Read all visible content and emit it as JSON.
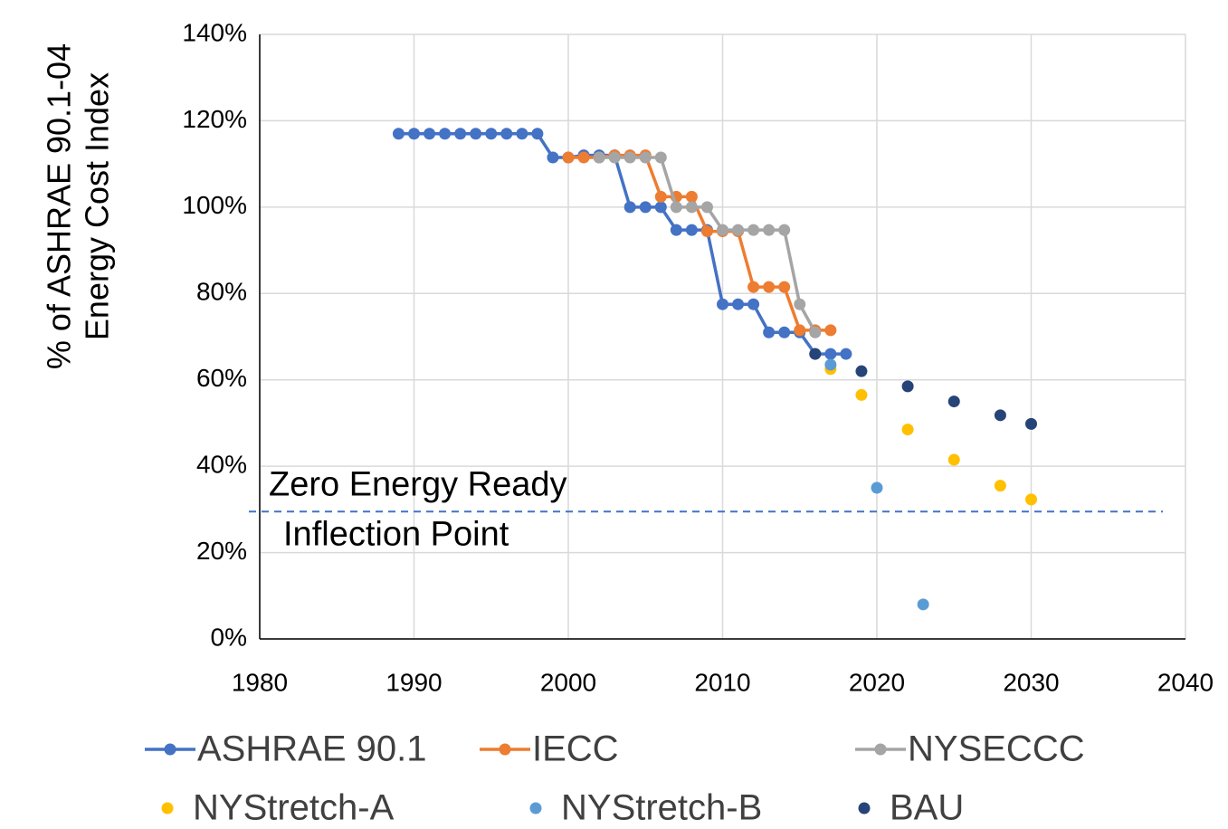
{
  "chart_data": {
    "type": "scatter",
    "y_label": [
      "% of ASHRAE 90.1-04",
      "Energy Cost Index"
    ],
    "annotations": [
      "Zero Energy Ready",
      "Inflection Point"
    ],
    "reference_line": {
      "value": 29.5,
      "color": "#4472c4",
      "style": "dashed"
    },
    "xlim": [
      1980,
      2040
    ],
    "xticks": [
      1980,
      1990,
      2000,
      2010,
      2020,
      2030,
      2040
    ],
    "ylim": [
      0,
      140
    ],
    "yticks": [
      {
        "value": 0,
        "label": "0%"
      },
      {
        "value": 20,
        "label": "20%"
      },
      {
        "value": 40,
        "label": "40%"
      },
      {
        "value": 60,
        "label": "60%"
      },
      {
        "value": 80,
        "label": "80%"
      },
      {
        "value": 100,
        "label": "100%"
      },
      {
        "value": 120,
        "label": "120%"
      },
      {
        "value": 140,
        "label": "140%"
      }
    ],
    "grid": true,
    "legend": "bottom",
    "series": [
      {
        "name": "ASHRAE 90.1",
        "color": "#4472c4",
        "style": "line",
        "x": [
          1989,
          1990,
          1991,
          1992,
          1993,
          1994,
          1995,
          1996,
          1997,
          1998,
          1999,
          2000,
          2001,
          2002,
          2003,
          2004,
          2005,
          2006,
          2007,
          2008,
          2009,
          2010,
          2011,
          2012,
          2013,
          2014,
          2015,
          2016,
          2017,
          2018
        ],
        "values": [
          117,
          117,
          117,
          117,
          117,
          117,
          117,
          117,
          117,
          117,
          111.5,
          111.5,
          112,
          112,
          112,
          100,
          100,
          100,
          94.7,
          94.7,
          94.7,
          77.5,
          77.5,
          77.5,
          71,
          71,
          71,
          66,
          66,
          66
        ]
      },
      {
        "name": "IECC",
        "color": "#ed7d31",
        "style": "line",
        "x": [
          2000,
          2001,
          2002,
          2003,
          2004,
          2005,
          2006,
          2007,
          2008,
          2009,
          2010,
          2011,
          2012,
          2013,
          2014,
          2015,
          2016,
          2017
        ],
        "values": [
          111.5,
          111.5,
          111.5,
          112,
          112,
          112,
          102.4,
          102.4,
          102.4,
          94.4,
          94.4,
          94.4,
          81.5,
          81.5,
          81.5,
          71.5,
          71.5,
          71.5
        ]
      },
      {
        "name": "NYSECCC",
        "color": "#a5a5a5",
        "style": "line",
        "x": [
          2002,
          2003,
          2004,
          2005,
          2006,
          2007,
          2008,
          2009,
          2010,
          2011,
          2012,
          2013,
          2014,
          2015,
          2016
        ],
        "values": [
          111.5,
          111.5,
          111.5,
          111.5,
          111.5,
          100,
          100,
          100,
          94.7,
          94.7,
          94.7,
          94.7,
          94.7,
          77.5,
          71
        ]
      },
      {
        "name": "NYStretch-A",
        "color": "#ffc000",
        "style": "markers",
        "x": [
          2017,
          2019,
          2022,
          2025,
          2028,
          2030
        ],
        "values": [
          62.5,
          56.5,
          48.5,
          41.5,
          35.5,
          32.3
        ]
      },
      {
        "name": "NYStretch-B",
        "color": "#5b9bd5",
        "style": "markers",
        "x": [
          2017,
          2020,
          2023
        ],
        "values": [
          63.5,
          35,
          8
        ]
      },
      {
        "name": "BAU",
        "color": "#264478",
        "style": "markers",
        "x": [
          2016,
          2019,
          2022,
          2025,
          2028,
          2030
        ],
        "values": [
          66,
          62,
          58.5,
          55,
          51.8,
          49.8
        ]
      }
    ]
  }
}
